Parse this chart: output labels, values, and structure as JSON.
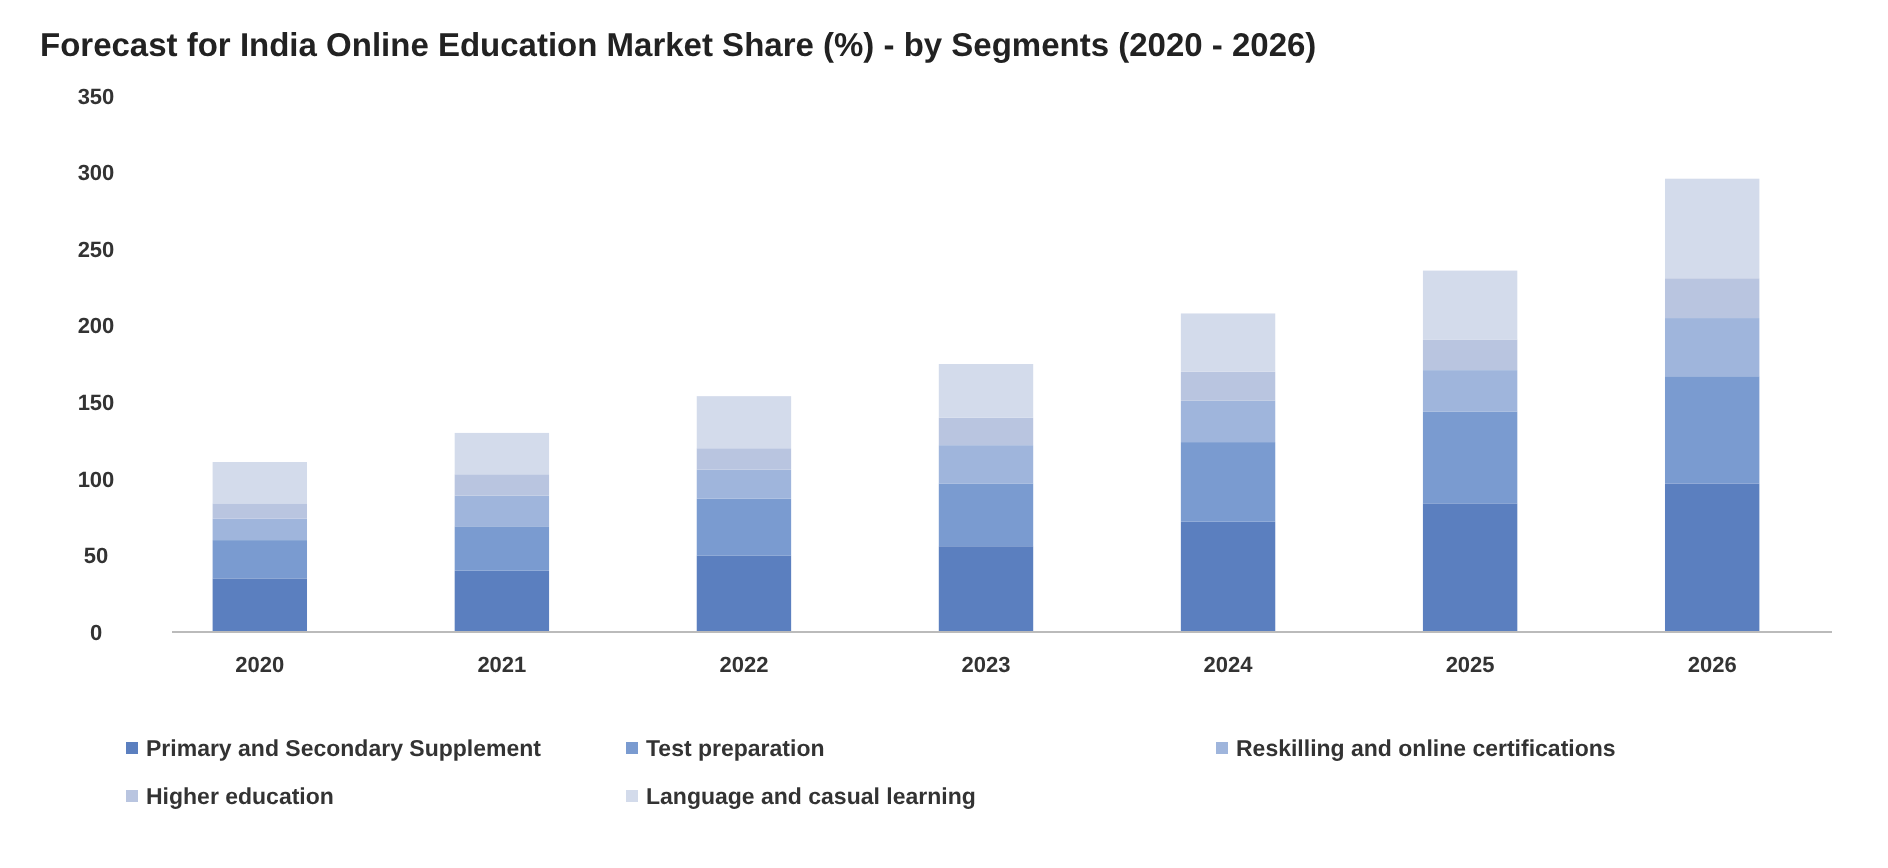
{
  "chart_data": {
    "type": "bar",
    "title": "Forecast for India Online Education Market Share (%) - by Segments (2020 - 2026)",
    "categories": [
      "2020",
      "2021",
      "2022",
      "2023",
      "2024",
      "2025",
      "2026"
    ],
    "stacked": true,
    "legend": "bottom",
    "grid": false,
    "ylim": [
      0,
      350
    ],
    "yticks": [
      0,
      50,
      100,
      150,
      200,
      250,
      300,
      350
    ],
    "series": [
      {
        "name": "Primary and Secondary Supplement",
        "color": "#5b7fbf",
        "values": [
          35,
          40,
          50,
          56,
          72,
          84,
          97
        ]
      },
      {
        "name": "Test preparation",
        "color": "#7a9bd0",
        "values": [
          25,
          29,
          37,
          41,
          52,
          60,
          70
        ]
      },
      {
        "name": "Reskilling and online certifications",
        "color": "#9fb5dc",
        "values": [
          14,
          20,
          19,
          25,
          27,
          27,
          38
        ]
      },
      {
        "name": "Higher education",
        "color": "#b9c5e0",
        "values": [
          10,
          14,
          14,
          18,
          19,
          20,
          26
        ]
      },
      {
        "name": "Language and casual learning",
        "color": "#d3dbeb",
        "values": [
          27,
          27,
          34,
          35,
          38,
          45,
          65
        ]
      }
    ]
  }
}
